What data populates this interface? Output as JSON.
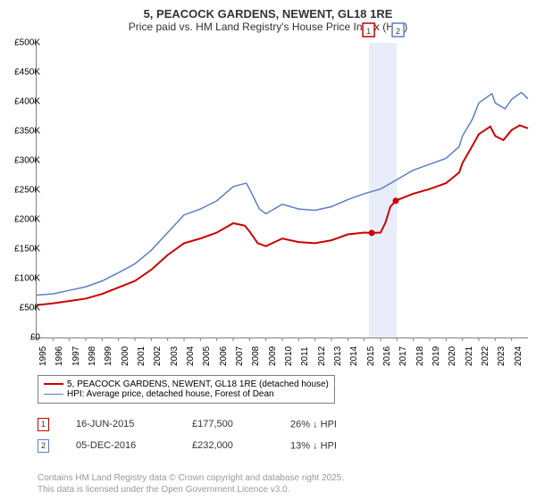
{
  "title_main": "5, PEACOCK GARDENS, NEWENT, GL18 1RE",
  "title_sub": "Price paid vs. HM Land Registry's House Price Index (HPI)",
  "chart": {
    "type": "line",
    "background_color": "#ffffff",
    "axis_color": "#7f7f7f",
    "xlim": [
      1995,
      2025
    ],
    "ylim": [
      0,
      500
    ],
    "x_years": [
      1995,
      1996,
      1997,
      1998,
      1999,
      2000,
      2001,
      2002,
      2003,
      2004,
      2005,
      2006,
      2007,
      2008,
      2009,
      2010,
      2011,
      2012,
      2013,
      2014,
      2015,
      2016,
      2017,
      2018,
      2019,
      2020,
      2021,
      2022,
      2023,
      2024
    ],
    "y_ticks": [
      0,
      50,
      100,
      150,
      200,
      250,
      300,
      350,
      400,
      450,
      500
    ],
    "y_tick_labels": [
      "£0",
      "£50K",
      "£100K",
      "£150K",
      "£200K",
      "£250K",
      "£300K",
      "£350K",
      "£400K",
      "£450K",
      "£500K"
    ],
    "highlight_band": {
      "x_start": 2015.3,
      "x_end": 2017.0,
      "color": "#e8eef9"
    },
    "series": [
      {
        "name": "price_paid",
        "label": "5, PEACOCK GARDENS, NEWENT, GL18 1RE (detached house)",
        "color": "#cc0000",
        "width": 2,
        "data": [
          [
            1995,
            55
          ],
          [
            1996,
            58
          ],
          [
            1997,
            62
          ],
          [
            1998,
            66
          ],
          [
            1999,
            74
          ],
          [
            2000,
            85
          ],
          [
            2001,
            96
          ],
          [
            2002,
            115
          ],
          [
            2003,
            140
          ],
          [
            2004,
            160
          ],
          [
            2005,
            168
          ],
          [
            2006,
            178
          ],
          [
            2007,
            194
          ],
          [
            2007.7,
            190
          ],
          [
            2008,
            180
          ],
          [
            2008.5,
            160
          ],
          [
            2009,
            155
          ],
          [
            2010,
            168
          ],
          [
            2011,
            162
          ],
          [
            2012,
            160
          ],
          [
            2013,
            165
          ],
          [
            2014,
            175
          ],
          [
            2015,
            178
          ],
          [
            2015.46,
            177.5
          ],
          [
            2016,
            178
          ],
          [
            2016.3,
            195
          ],
          [
            2016.6,
            222
          ],
          [
            2016.93,
            232
          ],
          [
            2017,
            233
          ],
          [
            2018,
            244
          ],
          [
            2019,
            252
          ],
          [
            2020,
            262
          ],
          [
            2020.8,
            280
          ],
          [
            2021,
            296
          ],
          [
            2021.5,
            320
          ],
          [
            2022,
            345
          ],
          [
            2022.7,
            358
          ],
          [
            2023,
            342
          ],
          [
            2023.5,
            335
          ],
          [
            2024,
            352
          ],
          [
            2024.5,
            360
          ],
          [
            2025,
            355
          ]
        ]
      },
      {
        "name": "hpi",
        "label": "HPI: Average price, detached house, Forest of Dean",
        "color": "#5b7fc7",
        "width": 1.5,
        "data": [
          [
            1995,
            72
          ],
          [
            1996,
            74
          ],
          [
            1997,
            80
          ],
          [
            1998,
            86
          ],
          [
            1999,
            96
          ],
          [
            2000,
            110
          ],
          [
            2001,
            125
          ],
          [
            2002,
            148
          ],
          [
            2003,
            178
          ],
          [
            2004,
            208
          ],
          [
            2005,
            218
          ],
          [
            2006,
            232
          ],
          [
            2007,
            256
          ],
          [
            2007.8,
            262
          ],
          [
            2008,
            252
          ],
          [
            2008.6,
            218
          ],
          [
            2009,
            210
          ],
          [
            2010,
            226
          ],
          [
            2011,
            218
          ],
          [
            2012,
            216
          ],
          [
            2013,
            222
          ],
          [
            2014,
            234
          ],
          [
            2015,
            244
          ],
          [
            2016,
            252
          ],
          [
            2017,
            268
          ],
          [
            2018,
            284
          ],
          [
            2019,
            294
          ],
          [
            2020,
            304
          ],
          [
            2020.8,
            324
          ],
          [
            2021,
            342
          ],
          [
            2021.6,
            370
          ],
          [
            2022,
            398
          ],
          [
            2022.8,
            414
          ],
          [
            2023,
            398
          ],
          [
            2023.6,
            388
          ],
          [
            2024,
            404
          ],
          [
            2024.6,
            416
          ],
          [
            2025,
            405
          ]
        ]
      }
    ],
    "sale_markers": [
      {
        "n": "1",
        "x": 2015.46,
        "y": 177.5,
        "box_border": "#cc0000",
        "label_x_offset": -4
      },
      {
        "n": "2",
        "x": 2016.93,
        "y": 232,
        "box_border": "#5b7fc7",
        "label_x_offset": 2
      }
    ]
  },
  "legend": {
    "items": [
      {
        "color": "#cc0000",
        "width": 2,
        "label": "5, PEACOCK GARDENS, NEWENT, GL18 1RE (detached house)"
      },
      {
        "color": "#5b7fc7",
        "width": 1.5,
        "label": "HPI: Average price, detached house, Forest of Dean"
      }
    ]
  },
  "sales_table": {
    "rows": [
      {
        "marker": "1",
        "marker_color": "#cc0000",
        "date": "16-JUN-2015",
        "price": "£177,500",
        "diff": "26% ↓ HPI"
      },
      {
        "marker": "2",
        "marker_color": "#5b7fc7",
        "date": "05-DEC-2016",
        "price": "£232,000",
        "diff": "13% ↓ HPI"
      }
    ]
  },
  "footer_lines": [
    "Contains HM Land Registry data © Crown copyright and database right 2025.",
    "This data is licensed under the Open Government Licence v3.0."
  ]
}
